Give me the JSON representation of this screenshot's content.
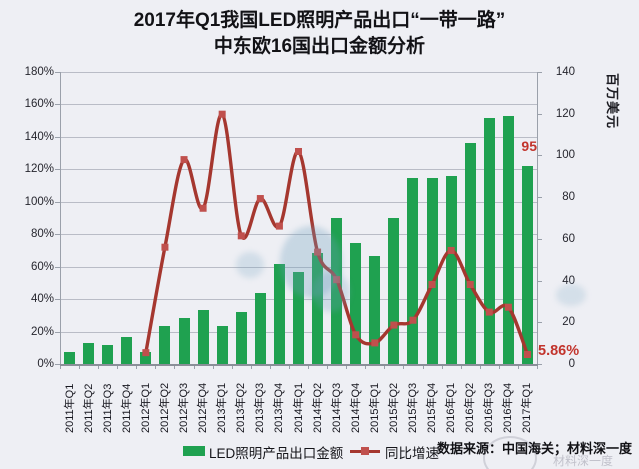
{
  "title": {
    "line1": "2017年Q1我国LED照明产品出口“一带一路”",
    "line2": "中东欧16国出口金额分析"
  },
  "chart_data": {
    "type": "combo-bar-line",
    "categories": [
      "2011年Q1",
      "2011年Q2",
      "2011年Q3",
      "2011年Q4",
      "2012年Q1",
      "2012年Q2",
      "2012年Q3",
      "2012年Q4",
      "2013年Q1",
      "2013年Q2",
      "2013年Q3",
      "2013年Q4",
      "2014年Q1",
      "2014年Q2",
      "2014年Q3",
      "2014年Q4",
      "2015年Q1",
      "2015年Q2",
      "2015年Q3",
      "2015年Q4",
      "2016年Q1",
      "2016年Q2",
      "2016年Q3",
      "2016年Q4",
      "2017年Q1"
    ],
    "series": [
      {
        "name": "LED照明产品出口金额",
        "type": "bar",
        "axis": "right",
        "unit": "百万美元",
        "values": [
          6,
          10,
          9,
          13,
          6,
          18,
          22,
          26,
          18,
          25,
          34,
          48,
          44,
          53,
          70,
          58,
          52,
          70,
          89,
          89,
          90,
          106,
          118,
          119,
          95
        ]
      },
      {
        "name": "同比增速",
        "type": "line",
        "axis": "left",
        "unit": "%",
        "values": [
          null,
          null,
          null,
          null,
          7,
          72,
          126,
          96,
          154,
          79,
          102,
          85,
          131,
          69,
          52,
          18,
          13,
          24,
          27,
          49,
          70,
          49,
          32,
          35,
          5.86
        ]
      }
    ],
    "left_axis": {
      "min": 0,
      "max": 180,
      "ticks": [
        "180%",
        "160%",
        "140%",
        "120%",
        "100%",
        "80%",
        "60%",
        "40%",
        "20%",
        "0%"
      ]
    },
    "right_axis": {
      "min": 0,
      "max": 140,
      "title": "百万美元",
      "ticks": [
        "140",
        "120",
        "100",
        "80",
        "60",
        "40",
        "20",
        "0"
      ]
    },
    "annotations": [
      {
        "text": "95"
      },
      {
        "text": "5.86%"
      }
    ],
    "legend_position": "bottom",
    "grid": true
  },
  "colors": {
    "bar": "#1FA150",
    "line": "#A5372F",
    "marker": "#C0504D",
    "annotation": "#C2342C",
    "background": "#EEEFF4"
  },
  "source": "数据来源：中国海关；材料深一度",
  "watermark": "材料深一度"
}
